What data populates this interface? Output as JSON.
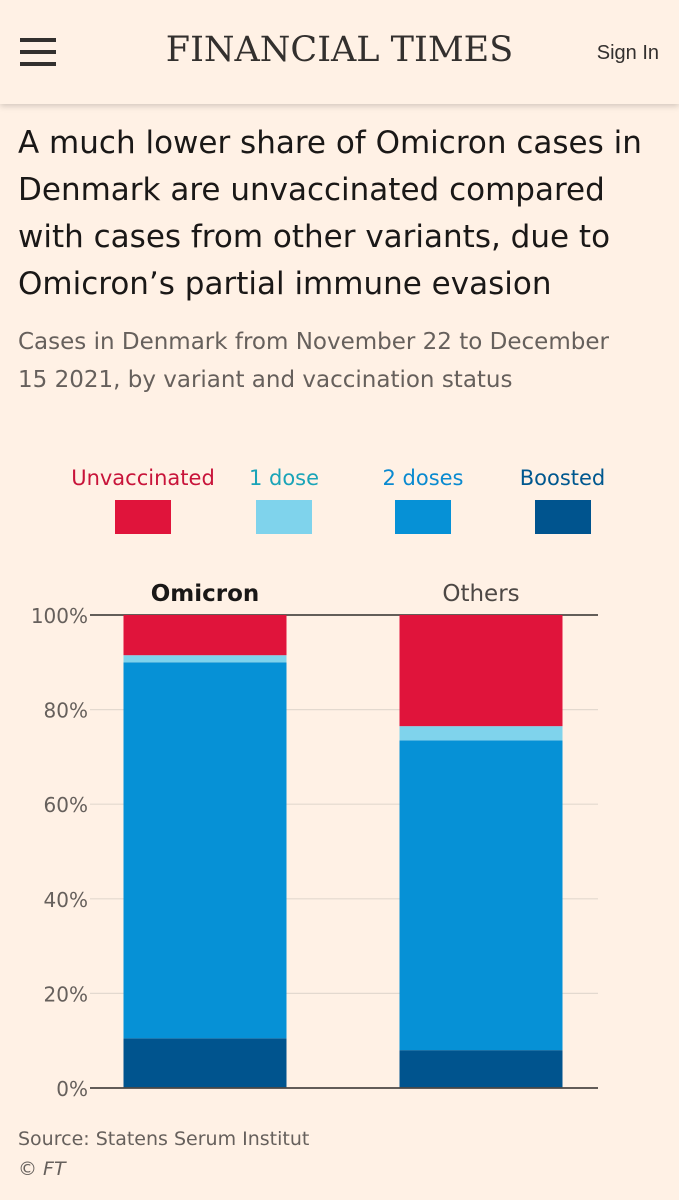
{
  "header": {
    "logo": "FINANCIAL TIMES",
    "signin": "Sign In"
  },
  "title": "A much lower share of Omicron cases in Denmark are unvaccinated compared with cases from other variants, due to Omicron’s partial immune evasion",
  "subtitle": "Cases in Denmark from November 22 to December 15 2021, by variant and vaccination status",
  "source": "Source: Statens Serum Institut",
  "copyright": "© FT",
  "colors": {
    "unvaccinated": "#e0143b",
    "one_dose": "#7fd3ec",
    "two_doses": "#0691d6",
    "boosted": "#00548e",
    "unvaccinated_label": "#c8143a",
    "one_dose_label": "#1aa4b8",
    "two_doses_label": "#0a8ad0",
    "boosted_label": "#00588f"
  },
  "chart_data": {
    "type": "bar",
    "stacked": true,
    "categories": [
      "Omicron",
      "Others"
    ],
    "series": [
      {
        "name": "Boosted",
        "values": [
          10.5,
          8
        ]
      },
      {
        "name": "2 doses",
        "values": [
          79.5,
          65.5
        ]
      },
      {
        "name": "1 dose",
        "values": [
          1.5,
          3
        ]
      },
      {
        "name": "Unvaccinated",
        "values": [
          8.5,
          23.5
        ]
      }
    ],
    "ylim": [
      0,
      100
    ],
    "yticks": [
      "0%",
      "20%",
      "40%",
      "60%",
      "80%",
      "100%"
    ],
    "legend": [
      "Unvaccinated",
      "1 dose",
      "2 doses",
      "Boosted"
    ],
    "legend_position": "top",
    "grid": true
  }
}
